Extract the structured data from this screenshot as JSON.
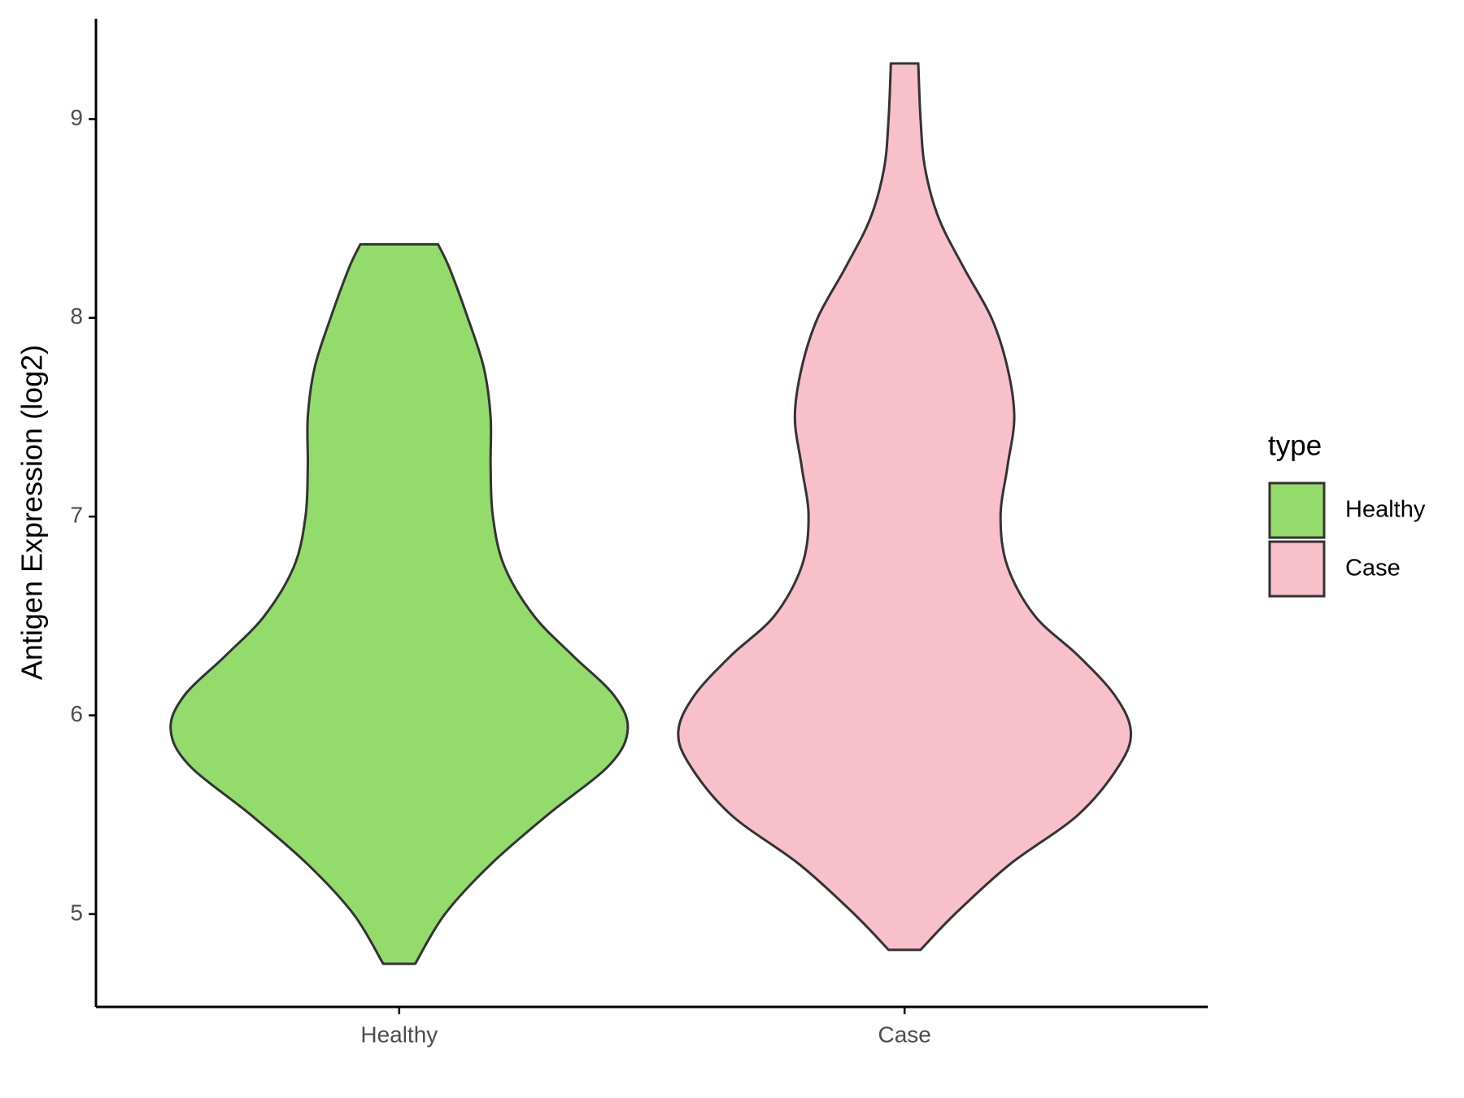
{
  "chart_data": {
    "type": "violin",
    "y_label": "Antigen Expression (log2)",
    "categories": [
      "Healthy",
      "Case"
    ],
    "legend_title": "type",
    "legend": "right",
    "ylim": [
      4.533,
      9.505
    ],
    "yticks": [
      5,
      6,
      7,
      8,
      9
    ],
    "violins": [
      {
        "name": "Healthy",
        "color": "#93dc6b",
        "y": [
          4.75,
          5.0,
          5.25,
          5.5,
          5.75,
          5.93,
          6.1,
          6.3,
          6.5,
          6.75,
          7.0,
          7.25,
          7.5,
          7.75,
          8.0,
          8.25,
          8.37
        ],
        "density": [
          0.07,
          0.2,
          0.4,
          0.65,
          0.92,
          1.0,
          0.94,
          0.76,
          0.59,
          0.46,
          0.41,
          0.4,
          0.4,
          0.37,
          0.3,
          0.22,
          0.17
        ]
      },
      {
        "name": "Case",
        "color": "#f7c0cb",
        "y": [
          4.82,
          5.0,
          5.25,
          5.5,
          5.75,
          5.92,
          6.1,
          6.3,
          6.5,
          6.75,
          7.0,
          7.25,
          7.5,
          7.75,
          8.0,
          8.25,
          8.5,
          8.75,
          9.0,
          9.28
        ],
        "density": [
          0.07,
          0.22,
          0.46,
          0.76,
          0.94,
          0.99,
          0.92,
          0.76,
          0.57,
          0.45,
          0.42,
          0.45,
          0.48,
          0.45,
          0.38,
          0.26,
          0.15,
          0.09,
          0.07,
          0.06
        ]
      }
    ]
  }
}
